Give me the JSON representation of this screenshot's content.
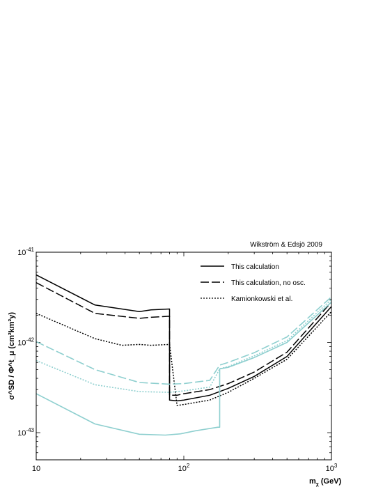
{
  "chart_data": {
    "type": "line",
    "annotation": "Wikström & Edsjö 2009",
    "xlabel": "m",
    "xlabel_sub": "χ",
    "xlabel_unit": " (GeV)",
    "ylabel": "σ^SD / Φ^t_μ (cm²km²y)",
    "xscale": "log",
    "yscale": "log",
    "xlim": [
      10,
      1000
    ],
    "ylim": [
      5e-44,
      1e-41
    ],
    "x_ticks": [
      {
        "value": 10,
        "base": "10",
        "exp": ""
      },
      {
        "value": 100,
        "base": "10",
        "exp": "2"
      },
      {
        "value": 1000,
        "base": "10",
        "exp": "3"
      }
    ],
    "y_ticks": [
      {
        "value": 1e-43,
        "base": "10",
        "exp": "-43"
      },
      {
        "value": 1e-42,
        "base": "10",
        "exp": "-42"
      },
      {
        "value": 1e-41,
        "base": "10",
        "exp": "-41"
      }
    ],
    "legend": {
      "position": "top-right",
      "entries": [
        {
          "label": "This calculation",
          "style": "solid"
        },
        {
          "label": "This calculation, no osc.",
          "style": "dashed"
        },
        {
          "label": "Kamionkowski et al.",
          "style": "dotted"
        }
      ]
    },
    "colors": {
      "black": "#000000",
      "cyan": "#8ecfcf"
    },
    "series": [
      {
        "color": "black",
        "style": "solid",
        "x": [
          10,
          25,
          50,
          60,
          80,
          80,
          90,
          100,
          150,
          200,
          300,
          500,
          1000
        ],
        "y": [
          5.6e-42,
          2.6e-42,
          2.2e-42,
          2.3e-42,
          2.35e-42,
          2.3e-43,
          2.25e-43,
          2.3e-43,
          2.6e-43,
          3.1e-43,
          4.2e-43,
          7e-43,
          2.5e-42
        ]
      },
      {
        "color": "black",
        "style": "dashed",
        "x": [
          10,
          25,
          50,
          60,
          80,
          80,
          90,
          100,
          150,
          200,
          300,
          500,
          1000
        ],
        "y": [
          4.6e-42,
          2.1e-42,
          1.85e-42,
          1.9e-42,
          1.95e-42,
          2.6e-43,
          2.6e-43,
          2.7e-43,
          3e-43,
          3.5e-43,
          4.7e-43,
          7.8e-43,
          2.8e-42
        ]
      },
      {
        "color": "black",
        "style": "dotted",
        "x": [
          10,
          25,
          38,
          50,
          60,
          80,
          90,
          100,
          150,
          200,
          300,
          500,
          1000
        ],
        "y": [
          2.1e-42,
          1.1e-42,
          9.3e-43,
          9.5e-43,
          9.3e-43,
          9.5e-43,
          2e-43,
          2.05e-43,
          2.3e-43,
          2.8e-43,
          4e-43,
          6.5e-43,
          2.2e-42
        ]
      },
      {
        "color": "cyan",
        "style": "solid",
        "x": [
          10,
          25,
          50,
          75,
          95,
          120,
          170,
          175,
          175,
          200,
          300,
          500,
          1000
        ],
        "y": [
          2.7e-43,
          1.25e-43,
          9.6e-44,
          9.4e-44,
          9.7e-44,
          1.05e-43,
          1.15e-43,
          1.15e-43,
          5.1e-43,
          5.3e-43,
          6.8e-43,
          1e-42,
          2.8e-42
        ]
      },
      {
        "color": "cyan",
        "style": "dashed",
        "x": [
          10,
          25,
          50,
          80,
          100,
          150,
          175,
          200,
          300,
          500,
          1000
        ],
        "y": [
          1.02e-42,
          5e-43,
          3.6e-43,
          3.45e-43,
          3.5e-43,
          3.8e-43,
          5.6e-43,
          6e-43,
          7.7e-43,
          1.15e-42,
          3.2e-42
        ]
      },
      {
        "color": "cyan",
        "style": "dotted",
        "x": [
          10,
          25,
          50,
          80,
          100,
          150,
          175,
          200,
          300,
          500,
          1000
        ],
        "y": [
          6.3e-43,
          3.4e-43,
          2.85e-43,
          2.8e-43,
          2.9e-43,
          3.2e-43,
          5.1e-43,
          5.4e-43,
          7.1e-43,
          1.05e-42,
          3e-42
        ]
      }
    ]
  }
}
